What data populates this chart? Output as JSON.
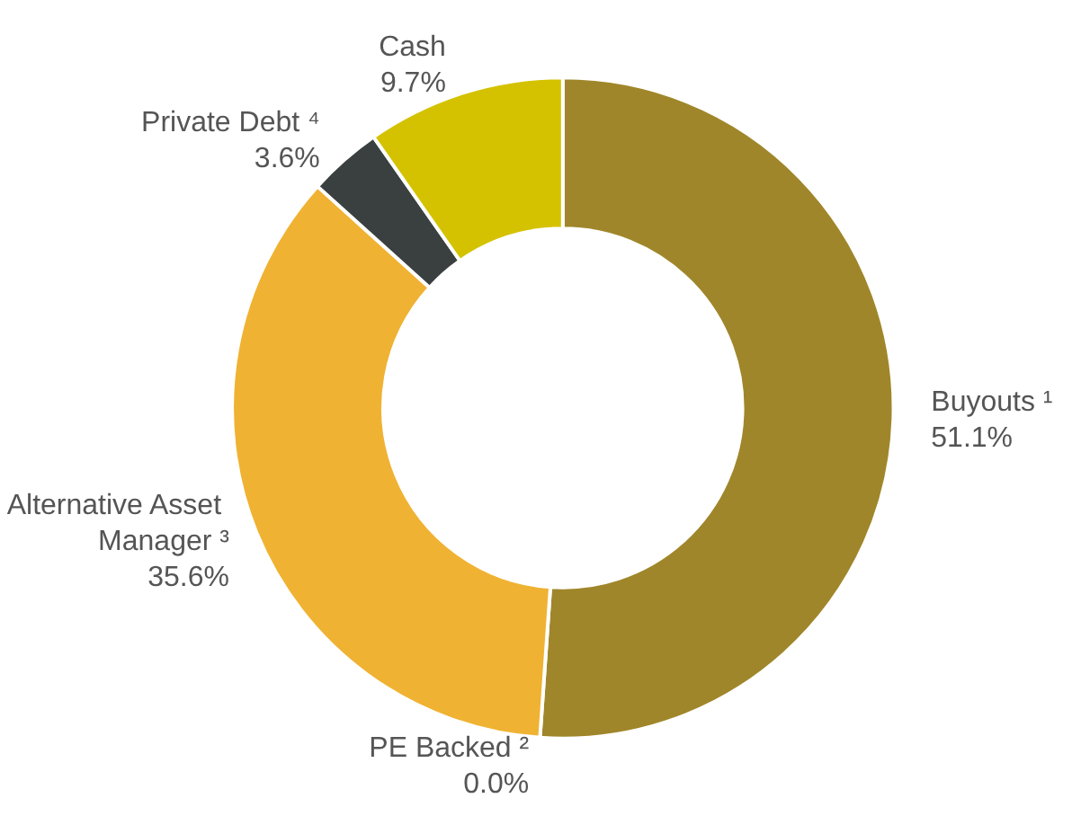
{
  "chart_data": {
    "type": "donut",
    "categories": [
      "Buyouts ¹",
      "PE Backed ²",
      "Alternative Asset Manager ³",
      "Private Debt ⁴",
      "Cash"
    ],
    "values": [
      51.1,
      0.0,
      35.6,
      3.6,
      9.7
    ],
    "value_labels": [
      "51.1%",
      "0.0%",
      "35.6%",
      "3.6%",
      "9.7%"
    ],
    "colors": [
      "#a0862a",
      "#e8e0c0",
      "#f0b232",
      "#3a3f3f",
      "#d4c200"
    ],
    "legend": false
  }
}
